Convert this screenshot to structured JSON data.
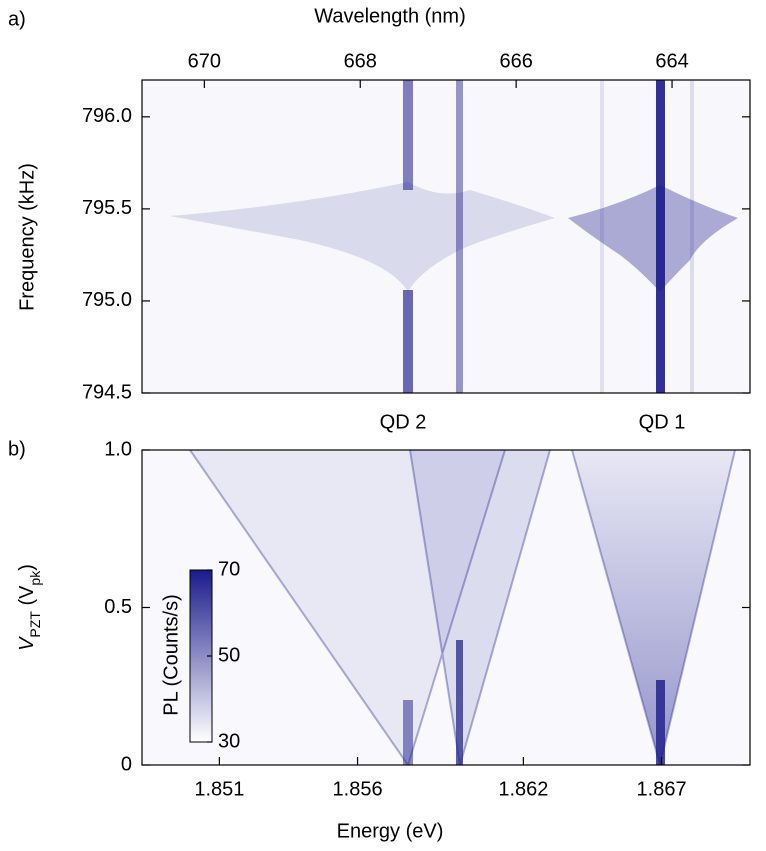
{
  "chart_data": [
    {
      "type": "heatmap",
      "panel_label": "a)",
      "xlabel": "Wavelength (nm)",
      "ylabel": "Frequency (kHz)",
      "xlim": [
        670.8,
        663.0
      ],
      "xticks": [
        670,
        668,
        666,
        664
      ],
      "ylim": [
        794.5,
        796.2
      ],
      "yticks": [
        {
          "value": 796,
          "label": "796.0"
        },
        795.5,
        {
          "value": 795,
          "label": "795.0"
        },
        794.5
      ],
      "color": "#1a1a8c"
    },
    {
      "type": "heatmap",
      "panel_label": "b)",
      "xlabel": "Energy (eV)",
      "ylabel": [
        "V",
        "PZT",
        " (V",
        "pk",
        ")"
      ],
      "xlim": [
        1.8482,
        1.8702
      ],
      "xticks": [
        1.851,
        1.856,
        1.862,
        1.867
      ],
      "ylim": [
        0,
        1
      ],
      "yticks": [
        0,
        0.5,
        {
          "value": 1,
          "label": "1.0"
        }
      ],
      "annotations": [
        "QD 2",
        "QD 1"
      ],
      "colorbar": {
        "label": "PL (Counts/s)",
        "lim": [
          30,
          70
        ],
        "ticks": [
          30,
          50,
          70
        ],
        "colormap": [
          "#ffffff",
          "#1a1a8c"
        ]
      },
      "color": "#1a1a8c"
    }
  ]
}
